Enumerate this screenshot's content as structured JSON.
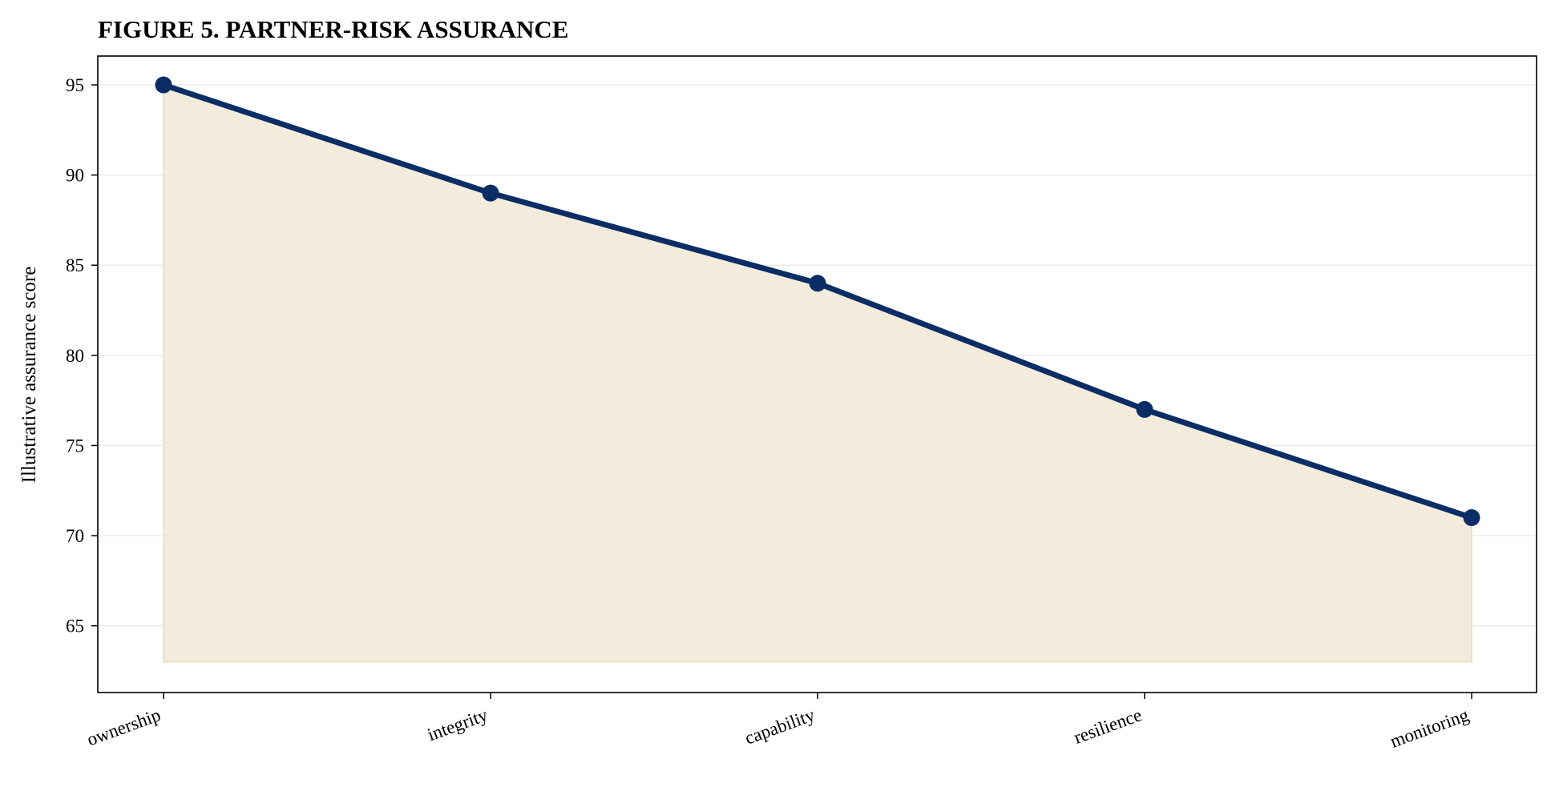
{
  "chart_data": {
    "type": "area",
    "title": "FIGURE 5. PARTNER-RISK ASSURANCE",
    "xlabel": "",
    "ylabel": "Illustrative assurance score",
    "categories": [
      "ownership",
      "integrity",
      "capability",
      "resilience",
      "monitoring"
    ],
    "series": [
      {
        "values": [
          95,
          89,
          84,
          77,
          71
        ]
      }
    ],
    "fill_baseline": 63,
    "ylim": [
      61.3,
      96.6
    ],
    "yticks": [
      65,
      70,
      75,
      80,
      85,
      90,
      95
    ],
    "grid": "horizontal",
    "colors": {
      "line": "#0b2d66",
      "marker": "#0b2d66",
      "fill": "#f3ecdd",
      "fill_edge": "#e8dcbc",
      "grid": "#ebebeb",
      "axis": "#000000"
    }
  }
}
